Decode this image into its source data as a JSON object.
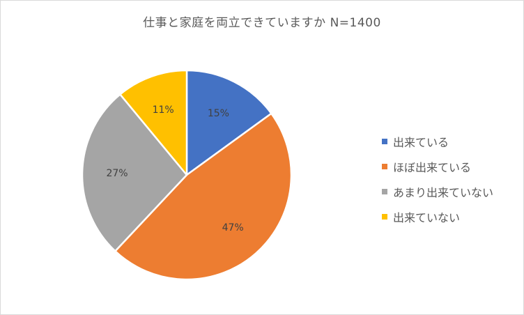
{
  "chart_data": {
    "type": "pie",
    "title": "仕事と家庭を両立できていますか N=1400",
    "categories": [
      "出来ている",
      "ほぼ出来ている",
      "あまり出来ていない",
      "出来ていない"
    ],
    "values": [
      15,
      47,
      27,
      11
    ],
    "value_labels": [
      "15%",
      "47%",
      "27%",
      "11%"
    ],
    "colors": [
      "#4472c4",
      "#ed7d31",
      "#a5a5a5",
      "#ffc000"
    ],
    "legend": "right",
    "start_angle_deg": 0,
    "direction": "clockwise"
  }
}
